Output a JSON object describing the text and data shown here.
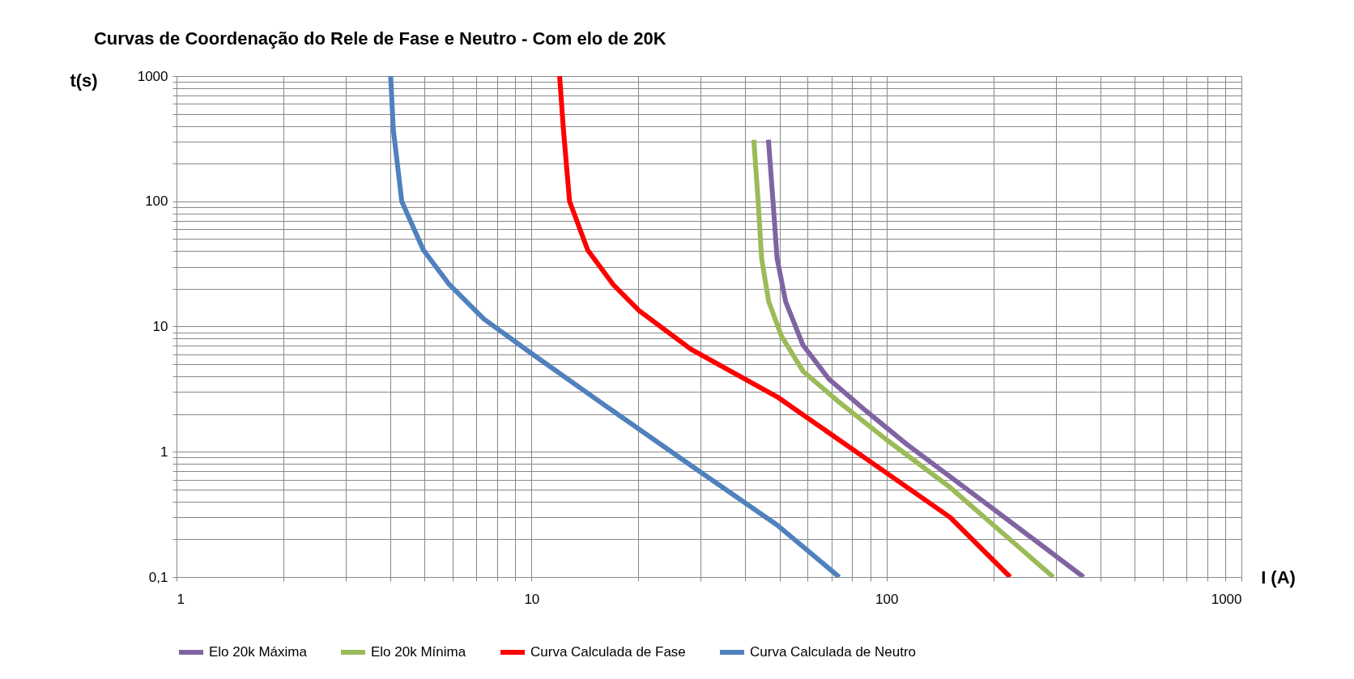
{
  "chart_data": {
    "type": "line",
    "title": "Curvas de Coordenação do Rele de Fase e Neutro - Com elo de 20K",
    "xlabel": "I (A)",
    "ylabel": "t(s)",
    "log": "xy",
    "grid": true,
    "legend": "bottom",
    "line_style": "solid",
    "xlim": [
      1,
      1000
    ],
    "ylim": [
      0.1,
      1000
    ],
    "xticks": [
      1,
      {
        "value": 2,
        "label": null
      },
      {
        "value": 3,
        "label": null
      },
      {
        "value": 4,
        "label": null
      },
      {
        "value": 5,
        "label": null
      },
      {
        "value": 6,
        "label": null
      },
      {
        "value": 7,
        "label": null
      },
      {
        "value": 8,
        "label": null
      },
      {
        "value": 9,
        "label": null
      },
      10,
      {
        "value": 20,
        "label": null
      },
      {
        "value": 30,
        "label": null
      },
      {
        "value": 40,
        "label": null
      },
      {
        "value": 50,
        "label": null
      },
      {
        "value": 60,
        "label": null
      },
      {
        "value": 70,
        "label": null
      },
      {
        "value": 80,
        "label": null
      },
      {
        "value": 90,
        "label": null
      },
      100,
      {
        "value": 200,
        "label": null
      },
      {
        "value": 300,
        "label": null
      },
      {
        "value": 400,
        "label": null
      },
      {
        "value": 500,
        "label": null
      },
      {
        "value": 600,
        "label": null
      },
      {
        "value": 700,
        "label": null
      },
      {
        "value": 800,
        "label": null
      },
      {
        "value": 900,
        "label": null
      },
      1000
    ],
    "yticks": [
      {
        "value": 0.1,
        "label": "0,1"
      },
      {
        "value": 0.2,
        "label": null
      },
      {
        "value": 0.3,
        "label": null
      },
      {
        "value": 0.4,
        "label": null
      },
      {
        "value": 0.5,
        "label": null
      },
      {
        "value": 0.6,
        "label": null
      },
      {
        "value": 0.7,
        "label": null
      },
      {
        "value": 0.8,
        "label": null
      },
      {
        "value": 0.9,
        "label": null
      },
      1,
      {
        "value": 2,
        "label": null
      },
      {
        "value": 3,
        "label": null
      },
      {
        "value": 4,
        "label": null
      },
      {
        "value": 5,
        "label": null
      },
      {
        "value": 6,
        "label": null
      },
      {
        "value": 7,
        "label": null
      },
      {
        "value": 8,
        "label": null
      },
      {
        "value": 9,
        "label": null
      },
      10,
      {
        "value": 20,
        "label": null
      },
      {
        "value": 30,
        "label": null
      },
      {
        "value": 40,
        "label": null
      },
      {
        "value": 50,
        "label": null
      },
      {
        "value": 60,
        "label": null
      },
      {
        "value": 70,
        "label": null
      },
      {
        "value": 80,
        "label": null
      },
      {
        "value": 90,
        "label": null
      },
      100,
      {
        "value": 200,
        "label": null
      },
      {
        "value": 300,
        "label": null
      },
      {
        "value": 400,
        "label": null
      },
      {
        "value": 500,
        "label": null
      },
      {
        "value": 600,
        "label": null
      },
      {
        "value": 700,
        "label": null
      },
      {
        "value": 800,
        "label": null
      },
      {
        "value": 900,
        "label": null
      },
      1000
    ],
    "series": [
      {
        "name": "Elo 20k Máxima",
        "color": "#8064a2",
        "x": [
          46.5,
          47.9,
          49.2,
          52.0,
          58.2,
          68.9,
          86.2,
          114,
          200,
          359
        ],
        "values": [
          310,
          100,
          34.8,
          15.8,
          7.1,
          3.8,
          2.2,
          1.15,
          0.35,
          0.1
        ]
      },
      {
        "name": "Elo 20k Mínima",
        "color": "#9bbb59",
        "x": [
          42.3,
          43.5,
          44.5,
          46.6,
          50.6,
          58.2,
          72.8,
          100,
          151,
          295
        ],
        "values": [
          310,
          100,
          34.8,
          15.8,
          8.4,
          4.4,
          2.55,
          1.25,
          0.52,
          0.1
        ]
      },
      {
        "name": "Curva Calculada de Fase",
        "color": "#ff0000",
        "x": [
          12.0,
          12.3,
          12.8,
          14.4,
          17.0,
          20.1,
          28.1,
          49.2,
          86.2,
          151,
          223
        ],
        "values": [
          1000,
          375,
          100,
          40.8,
          21.6,
          13.4,
          6.6,
          2.75,
          0.91,
          0.3,
          0.1
        ]
      },
      {
        "name": "Curva Calculada de Neutro",
        "color": "#4f81bd",
        "x": [
          4.01,
          4.08,
          4.31,
          4.96,
          5.87,
          7.34,
          10,
          16.1,
          28.1,
          49.2,
          73.6
        ],
        "values": [
          1000,
          375,
          100,
          40.8,
          21.6,
          11.5,
          6.1,
          2.35,
          0.78,
          0.26,
          0.1
        ]
      }
    ]
  }
}
